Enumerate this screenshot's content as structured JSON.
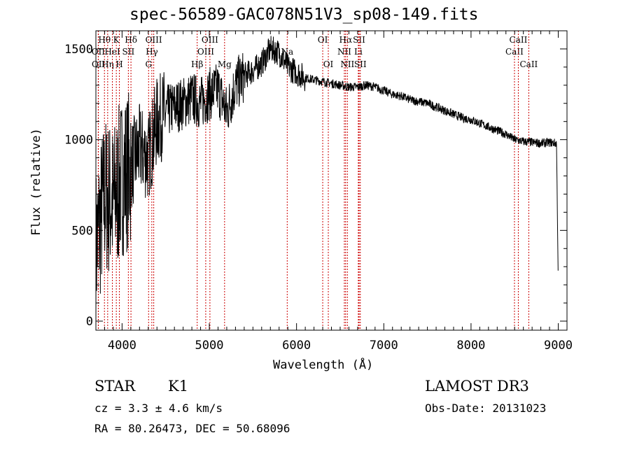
{
  "chart_data": {
    "type": "line",
    "title": "spec-56589-GAC078N51V3_sp08-149.fits",
    "xlabel": "Wavelength (Å)",
    "ylabel": "Flux (relative)",
    "xlim": [
      3700,
      9100
    ],
    "ylim": [
      -50,
      1600
    ],
    "xticks": [
      4000,
      5000,
      6000,
      7000,
      8000,
      9000
    ],
    "xtick_labels": [
      "4000",
      "5000",
      "6000",
      "7000",
      "8000",
      "9000"
    ],
    "yticks": [
      0,
      500,
      1000,
      1500
    ],
    "ytick_labels": [
      "0",
      "500",
      "1000",
      "1500"
    ],
    "grid": false,
    "series": [
      {
        "name": "spectrum",
        "x": [
          3700,
          3800,
          3900,
          4000,
          4100,
          4200,
          4300,
          4400,
          4500,
          4600,
          4700,
          4800,
          4900,
          5000,
          5100,
          5200,
          5300,
          5400,
          5500,
          5600,
          5700,
          5800,
          5900,
          6000,
          6100,
          6200,
          6300,
          6400,
          6500,
          6600,
          6700,
          6800,
          6900,
          7000,
          7100,
          7200,
          7300,
          7400,
          7500,
          7600,
          7700,
          7800,
          7900,
          8000,
          8100,
          8200,
          8300,
          8400,
          8500,
          8600,
          8700,
          8800,
          8900,
          8980,
          9000
        ],
        "y": [
          400,
          700,
          650,
          800,
          850,
          950,
          900,
          1100,
          1150,
          1180,
          1200,
          1230,
          1200,
          1250,
          1280,
          1150,
          1300,
          1350,
          1380,
          1420,
          1500,
          1480,
          1400,
          1370,
          1340,
          1330,
          1320,
          1310,
          1300,
          1290,
          1290,
          1300,
          1290,
          1270,
          1250,
          1240,
          1220,
          1210,
          1200,
          1180,
          1160,
          1140,
          1120,
          1110,
          1090,
          1070,
          1050,
          1030,
          1000,
          990,
          985,
          980,
          985,
          980,
          200
        ]
      }
    ],
    "lines": [
      {
        "label": "OII",
        "wave": 3727,
        "row": 2
      },
      {
        "label": "Hθ",
        "wave": 3798,
        "row": 1
      },
      {
        "label": "OII",
        "wave": 3729,
        "row": 3
      },
      {
        "label": "Hη",
        "wave": 3835,
        "row": 3
      },
      {
        "label": "HeI",
        "wave": 3889,
        "row": 2
      },
      {
        "label": "K",
        "wave": 3934,
        "row": 1
      },
      {
        "label": "H",
        "wave": 3969,
        "row": 3
      },
      {
        "label": "SII",
        "wave": 4072,
        "row": 2
      },
      {
        "label": "Hδ",
        "wave": 4102,
        "row": 1
      },
      {
        "label": "G",
        "wave": 4304,
        "row": 3
      },
      {
        "label": "Hγ",
        "wave": 4341,
        "row": 2
      },
      {
        "label": "OIII",
        "wave": 4363,
        "row": 1
      },
      {
        "label": "Hβ",
        "wave": 4861,
        "row": 3
      },
      {
        "label": "OIII",
        "wave": 4959,
        "row": 2
      },
      {
        "label": "OIII",
        "wave": 5007,
        "row": 1
      },
      {
        "label": "Mg",
        "wave": 5175,
        "row": 3
      },
      {
        "label": "Na",
        "wave": 5893,
        "row": 2
      },
      {
        "label": "OI",
        "wave": 6300,
        "row": 1
      },
      {
        "label": "OI",
        "wave": 6364,
        "row": 3
      },
      {
        "label": "NII",
        "wave": 6548,
        "row": 2
      },
      {
        "label": "Hα",
        "wave": 6563,
        "row": 1
      },
      {
        "label": "NII",
        "wave": 6583,
        "row": 3
      },
      {
        "label": "Li",
        "wave": 6708,
        "row": 2
      },
      {
        "label": "SII",
        "wave": 6717,
        "row": 1
      },
      {
        "label": "SII",
        "wave": 6731,
        "row": 3
      },
      {
        "label": "CaII",
        "wave": 8498,
        "row": 2
      },
      {
        "label": "CaII",
        "wave": 8542,
        "row": 1
      },
      {
        "label": "CaII",
        "wave": 8662,
        "row": 3
      }
    ],
    "line_color": "#cc0000"
  },
  "info": {
    "class": "STAR",
    "subclass": "K1",
    "cz": "cz = 3.3 ± 4.6 km/s",
    "radec": "RA =  80.26473, DEC =  50.68096",
    "survey": "LAMOST DR3",
    "obsdate": "Obs-Date: 20131023"
  }
}
